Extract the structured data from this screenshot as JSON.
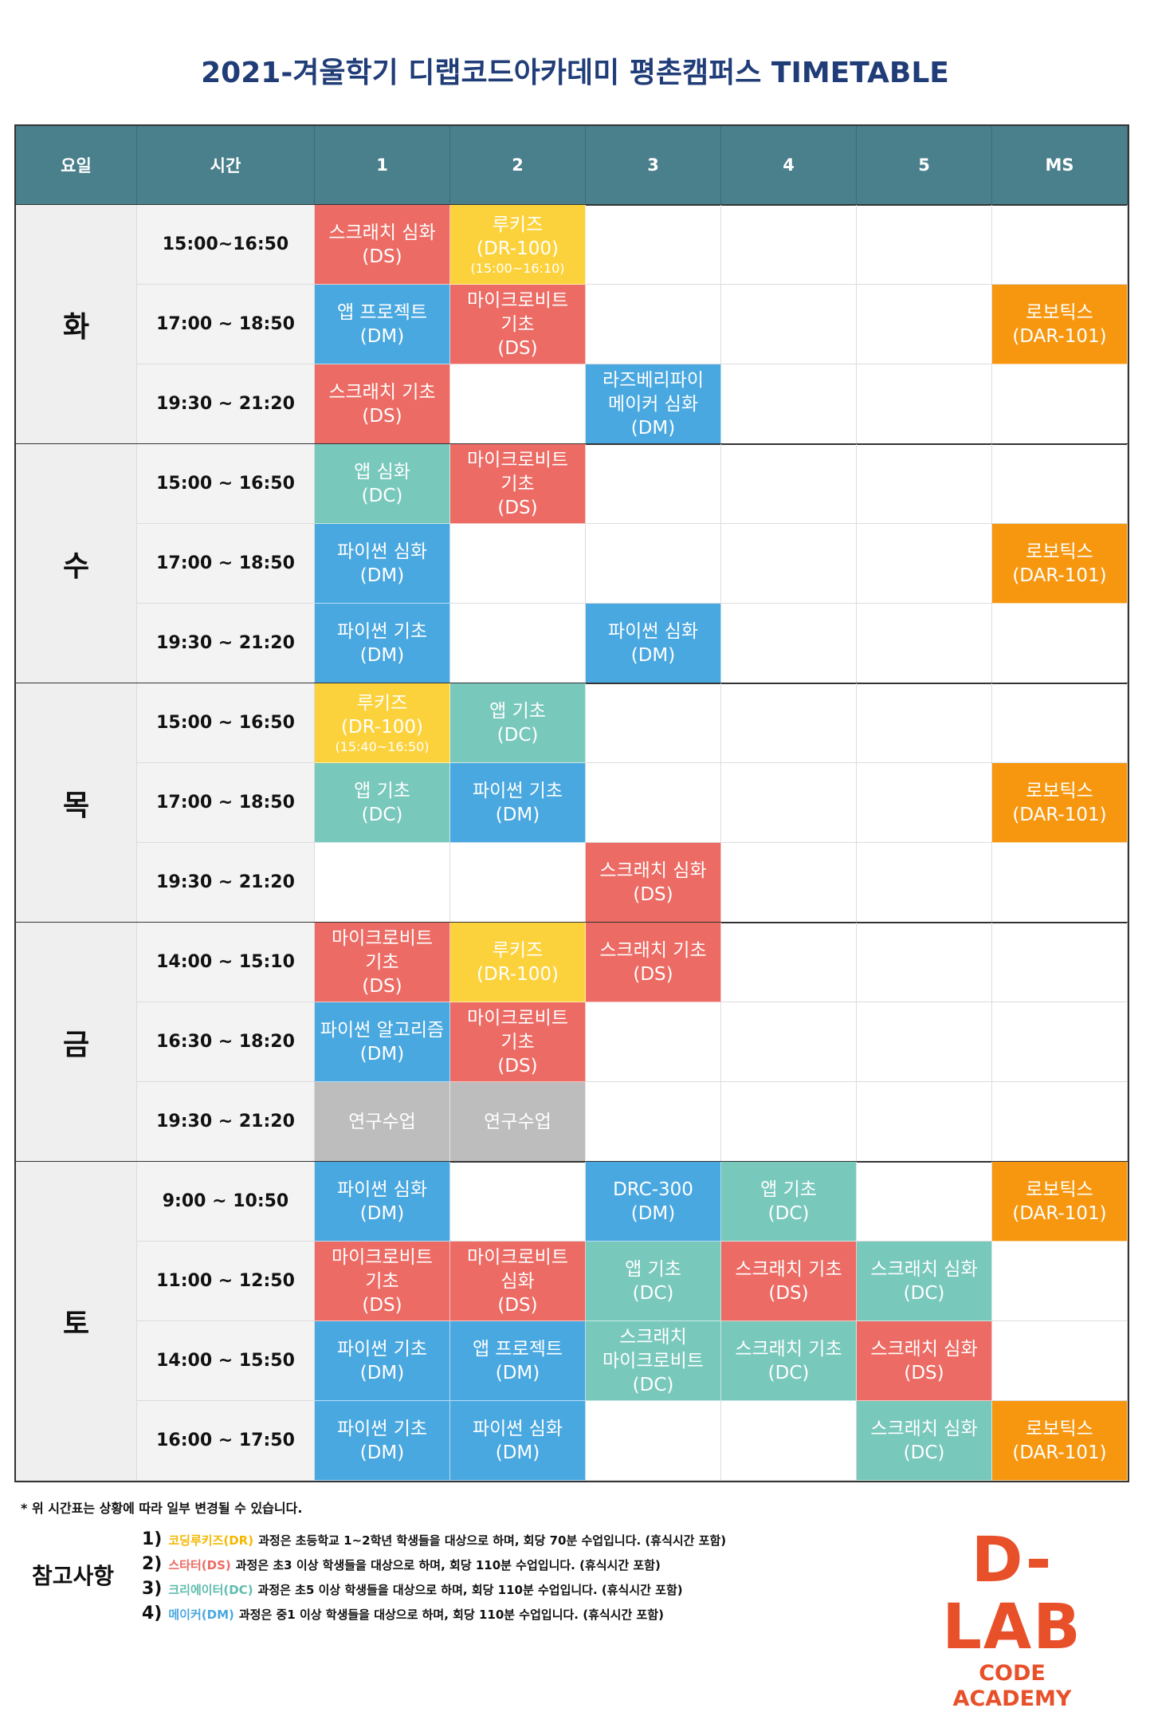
{
  "header": {
    "title": "2021-겨울학기 디랩코드아카데미 평촌캠퍼스 TIMETABLE"
  },
  "table": {
    "columns": [
      "요일",
      "시간",
      "1",
      "2",
      "3",
      "4",
      "5",
      "MS"
    ],
    "days": [
      {
        "day": "화",
        "rows": [
          {
            "time": "15:00~16:50",
            "cells": [
              {
                "lines": [
                  "스크래치 심화",
                  "(DS)"
                ],
                "color": "#ec6b64"
              },
              {
                "lines": [
                  "루키즈",
                  "(DR-100)"
                ],
                "note": "(15:00~16:10)",
                "color": "#fcd23c"
              },
              null,
              null,
              null,
              null
            ]
          },
          {
            "time": "17:00 ~ 18:50",
            "cells": [
              {
                "lines": [
                  "앱 프로젝트",
                  "(DM)"
                ],
                "color": "#4aa8e0"
              },
              {
                "lines": [
                  "마이크로비트",
                  "기초",
                  "(DS)"
                ],
                "color": "#ec6b64"
              },
              null,
              null,
              null,
              {
                "lines": [
                  "로보틱스",
                  "(DAR-101)"
                ],
                "color": "#f7970f"
              }
            ]
          },
          {
            "time": "19:30 ~ 21:20",
            "cells": [
              {
                "lines": [
                  "스크래치 기초",
                  "(DS)"
                ],
                "color": "#ec6b64"
              },
              null,
              {
                "lines": [
                  "라즈베리파이",
                  "메이커 심화",
                  "(DM)"
                ],
                "color": "#4aa8e0"
              },
              null,
              null,
              null
            ]
          }
        ]
      },
      {
        "day": "수",
        "rows": [
          {
            "time": "15:00 ~ 16:50",
            "cells": [
              {
                "lines": [
                  "앱 심화",
                  "(DC)"
                ],
                "color": "#79c8bc"
              },
              {
                "lines": [
                  "마이크로비트",
                  "기초",
                  "(DS)"
                ],
                "color": "#ec6b64"
              },
              null,
              null,
              null,
              null
            ]
          },
          {
            "time": "17:00 ~ 18:50",
            "cells": [
              {
                "lines": [
                  "파이썬 심화",
                  "(DM)"
                ],
                "color": "#4aa8e0"
              },
              null,
              null,
              null,
              null,
              {
                "lines": [
                  "로보틱스",
                  "(DAR-101)"
                ],
                "color": "#f7970f"
              }
            ]
          },
          {
            "time": "19:30 ~ 21:20",
            "cells": [
              {
                "lines": [
                  "파이썬 기초",
                  "(DM)"
                ],
                "color": "#4aa8e0"
              },
              null,
              {
                "lines": [
                  "파이썬 심화",
                  "(DM)"
                ],
                "color": "#4aa8e0"
              },
              null,
              null,
              null
            ]
          }
        ]
      },
      {
        "day": "목",
        "rows": [
          {
            "time": "15:00 ~ 16:50",
            "cells": [
              {
                "lines": [
                  "루키즈",
                  "(DR-100)"
                ],
                "note": "(15:40~16:50)",
                "color": "#fcd23c"
              },
              {
                "lines": [
                  "앱 기초",
                  "(DC)"
                ],
                "color": "#79c8bc"
              },
              null,
              null,
              null,
              null
            ]
          },
          {
            "time": "17:00 ~ 18:50",
            "cells": [
              {
                "lines": [
                  "앱 기초",
                  "(DC)"
                ],
                "color": "#79c8bc"
              },
              {
                "lines": [
                  "파이썬 기초",
                  "(DM)"
                ],
                "color": "#4aa8e0"
              },
              null,
              null,
              null,
              {
                "lines": [
                  "로보틱스",
                  "(DAR-101)"
                ],
                "color": "#f7970f"
              }
            ]
          },
          {
            "time": "19:30 ~ 21:20",
            "cells": [
              null,
              null,
              {
                "lines": [
                  "스크래치 심화",
                  "(DS)"
                ],
                "color": "#ec6b64"
              },
              null,
              null,
              null
            ]
          }
        ]
      },
      {
        "day": "금",
        "rows": [
          {
            "time": "14:00 ~ 15:10",
            "cells": [
              {
                "lines": [
                  "마이크로비트",
                  "기초",
                  "(DS)"
                ],
                "color": "#ec6b64"
              },
              {
                "lines": [
                  "루키즈",
                  "(DR-100)"
                ],
                "color": "#fcd23c"
              },
              {
                "lines": [
                  "스크래치 기초",
                  "(DS)"
                ],
                "color": "#ec6b64"
              },
              null,
              null,
              null
            ]
          },
          {
            "time": "16:30 ~ 18:20",
            "cells": [
              {
                "lines": [
                  "파이썬 알고리즘",
                  "(DM)"
                ],
                "color": "#4aa8e0"
              },
              {
                "lines": [
                  "마이크로비트",
                  "기초",
                  "(DS)"
                ],
                "color": "#ec6b64"
              },
              null,
              null,
              null,
              null
            ]
          },
          {
            "time": "19:30 ~ 21:20",
            "cells": [
              {
                "lines": [
                  "연구수업"
                ],
                "color": "#bdbdbd"
              },
              {
                "lines": [
                  "연구수업"
                ],
                "color": "#bdbdbd"
              },
              null,
              null,
              null,
              null
            ]
          }
        ]
      },
      {
        "day": "토",
        "rows": [
          {
            "time": "9:00 ~ 10:50",
            "cells": [
              {
                "lines": [
                  "파이썬 심화",
                  "(DM)"
                ],
                "color": "#4aa8e0"
              },
              null,
              {
                "lines": [
                  "DRC-300",
                  "(DM)"
                ],
                "color": "#4aa8e0"
              },
              {
                "lines": [
                  "앱 기초",
                  "(DC)"
                ],
                "color": "#79c8bc"
              },
              null,
              {
                "lines": [
                  "로보틱스",
                  "(DAR-101)"
                ],
                "color": "#f7970f"
              }
            ]
          },
          {
            "time": "11:00 ~ 12:50",
            "cells": [
              {
                "lines": [
                  "마이크로비트",
                  "기초",
                  "(DS)"
                ],
                "color": "#ec6b64"
              },
              {
                "lines": [
                  "마이크로비트",
                  "심화",
                  "(DS)"
                ],
                "color": "#ec6b64"
              },
              {
                "lines": [
                  "앱 기초",
                  "(DC)"
                ],
                "color": "#79c8bc"
              },
              {
                "lines": [
                  "스크래치 기초",
                  "(DS)"
                ],
                "color": "#ec6b64"
              },
              {
                "lines": [
                  "스크래치 심화",
                  "(DC)"
                ],
                "color": "#79c8bc"
              },
              null
            ]
          },
          {
            "time": "14:00 ~ 15:50",
            "cells": [
              {
                "lines": [
                  "파이썬 기초",
                  "(DM)"
                ],
                "color": "#4aa8e0"
              },
              {
                "lines": [
                  "앱 프로젝트",
                  "(DM)"
                ],
                "color": "#4aa8e0"
              },
              {
                "lines": [
                  "스크래치",
                  "마이크로비트",
                  "(DC)"
                ],
                "color": "#79c8bc"
              },
              {
                "lines": [
                  "스크래치 기초",
                  "(DC)"
                ],
                "color": "#79c8bc"
              },
              {
                "lines": [
                  "스크래치 심화",
                  "(DS)"
                ],
                "color": "#ec6b64"
              },
              null
            ]
          },
          {
            "time": "16:00 ~ 17:50",
            "cells": [
              {
                "lines": [
                  "파이썬 기초",
                  "(DM)"
                ],
                "color": "#4aa8e0"
              },
              {
                "lines": [
                  "파이썬 심화",
                  "(DM)"
                ],
                "color": "#4aa8e0"
              },
              null,
              null,
              {
                "lines": [
                  "스크래치 심화",
                  "(DC)"
                ],
                "color": "#79c8bc"
              },
              {
                "lines": [
                  "로보틱스",
                  "(DAR-101)"
                ],
                "color": "#f7970f"
              }
            ]
          }
        ]
      }
    ]
  },
  "footer": {
    "notice": "* 위 시간표는 상황에 따라 일부 변경될 수 있습니다.",
    "notes_title": "참고사항",
    "notes": [
      {
        "num": "1)",
        "course": "코딩루키즈(DR)",
        "course_color": "#f5b800",
        "text": "과정은 초등학교 1~2학년 학생들을 대상으로 하며, 회당 70분 수업입니다. (휴식시간 포함)"
      },
      {
        "num": "2)",
        "course": "스타터(DS)",
        "course_color": "#ec6b64",
        "text": "과정은 초3 이상 학생들을 대상으로 하며, 회당 110분 수업입니다. (휴식시간 포함)"
      },
      {
        "num": "3)",
        "course": "크리에이터(DC)",
        "course_color": "#5fbcae",
        "text": "과정은 초5 이상 학생들을 대상으로 하며, 회당 110분 수업입니다. (휴식시간 포함)"
      },
      {
        "num": "4)",
        "course": "메이커(DM)",
        "course_color": "#4aa8e0",
        "text": "과정은 중1 이상 학생들을 대상으로 하며, 회당 110분 수업입니다. (휴식시간 포함)"
      }
    ]
  },
  "logo": {
    "name": "D-LAB",
    "tagline": "CODE ACADEMY"
  }
}
